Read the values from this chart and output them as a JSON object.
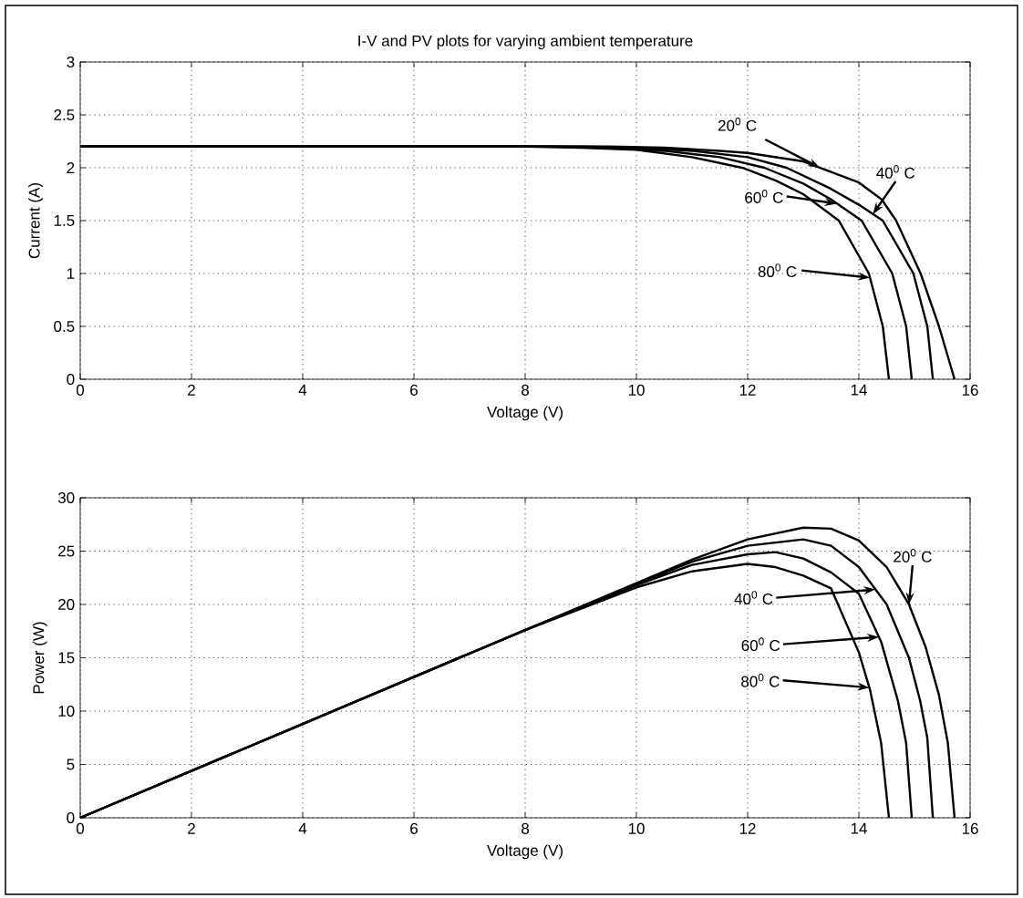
{
  "chart_data": [
    {
      "type": "line",
      "title": "I-V and PV plots for varying ambient temperature",
      "xlabel": "Voltage (V)",
      "ylabel": "Current (A)",
      "xlim": [
        0,
        16
      ],
      "ylim": [
        0,
        3
      ],
      "xticks": [
        0,
        2,
        4,
        6,
        8,
        10,
        12,
        14,
        16
      ],
      "yticks": [
        0,
        0.5,
        1,
        1.5,
        2,
        2.5,
        3
      ],
      "grid": true,
      "marker": "none",
      "line_style": "solid",
      "series": [
        {
          "color": "#000000",
          "x": [
            0,
            8,
            9,
            10,
            11,
            11.9,
            12.5,
            13,
            13.64,
            14.18,
            14.43,
            14.54
          ],
          "values": [
            2.2,
            2.2,
            2.19,
            2.17,
            2.1,
            2.0,
            1.88,
            1.75,
            1.5,
            1.0,
            0.5,
            0
          ]
        },
        {
          "color": "#000000",
          "x": [
            0,
            8.5,
            9.5,
            10.5,
            11.5,
            12.3,
            13,
            13.5,
            14.05,
            14.6,
            14.85,
            14.95
          ],
          "values": [
            2.2,
            2.2,
            2.19,
            2.16,
            2.1,
            2.0,
            1.85,
            1.7,
            1.5,
            1.0,
            0.5,
            0
          ]
        },
        {
          "color": "#000000",
          "x": [
            0,
            9,
            10,
            11,
            12,
            12.7,
            13.5,
            14,
            14.43,
            14.98,
            15.23,
            15.33
          ],
          "values": [
            2.2,
            2.2,
            2.19,
            2.16,
            2.1,
            2.0,
            1.8,
            1.65,
            1.5,
            1.0,
            0.5,
            0
          ]
        },
        {
          "color": "#000000",
          "x": [
            0,
            9.5,
            10.5,
            11.5,
            12,
            13,
            14,
            14.41,
            14.67,
            15.11,
            15.44,
            15.72
          ],
          "values": [
            2.2,
            2.2,
            2.19,
            2.16,
            2.14,
            2.06,
            1.86,
            1.7,
            1.5,
            1.0,
            0.5,
            0
          ]
        }
      ],
      "annotations": [
        {
          "text": "20$^{0}$ C",
          "x": 13.3,
          "y": 2.0
        },
        {
          "text": "40$^{0}$ C",
          "x": 14.25,
          "y": 1.56
        },
        {
          "text": "60$^{0}$ C",
          "x": 13.6,
          "y": 1.66
        },
        {
          "text": "80$^{0}$ C",
          "x": 14.2,
          "y": 0.96
        }
      ]
    },
    {
      "type": "line",
      "xlabel": "Voltage (V)",
      "ylabel": "Power (W)",
      "xlim": [
        0,
        16
      ],
      "ylim": [
        0,
        30
      ],
      "xticks": [
        0,
        2,
        4,
        6,
        8,
        10,
        12,
        14,
        16
      ],
      "yticks": [
        0,
        5,
        10,
        15,
        20,
        25,
        30
      ],
      "grid": true,
      "marker": "none",
      "line_style": "solid",
      "series": [
        {
          "color": "#000000",
          "x": [
            0,
            4,
            8,
            10,
            11,
            12,
            12.5,
            13,
            13.5,
            14,
            14.2,
            14.4,
            14.54
          ],
          "values": [
            0,
            8.8,
            17.6,
            21.6,
            23.1,
            23.8,
            23.5,
            22.7,
            21.5,
            15.5,
            12,
            7,
            0
          ]
        },
        {
          "color": "#000000",
          "x": [
            0,
            4,
            8,
            10,
            11,
            12,
            12.5,
            13,
            13.5,
            14,
            14.4,
            14.7,
            14.85,
            14.95
          ],
          "values": [
            0,
            8.8,
            17.6,
            21.8,
            23.7,
            24.7,
            24.9,
            24.3,
            23,
            21,
            16.5,
            11,
            7,
            0
          ]
        },
        {
          "color": "#000000",
          "x": [
            0,
            8,
            10,
            11,
            12,
            13,
            13.5,
            14,
            14.5,
            14.9,
            15.1,
            15.23,
            15.33
          ],
          "values": [
            0,
            17.6,
            21.9,
            24,
            25.5,
            26.1,
            25.5,
            23.5,
            20,
            15,
            11,
            7.5,
            0
          ]
        },
        {
          "color": "#000000",
          "x": [
            0,
            8,
            10,
            11,
            12,
            13,
            13.5,
            14,
            14.5,
            14.9,
            15.2,
            15.44,
            15.6,
            15.72
          ],
          "values": [
            0,
            17.6,
            22,
            24.2,
            26.1,
            27.2,
            27.1,
            26,
            23.5,
            20,
            16,
            11.5,
            7,
            0
          ]
        }
      ],
      "annotations": [
        {
          "text": "20$^{0}$ C",
          "x": 14.9,
          "y": 20
        },
        {
          "text": "40$^{0}$ C",
          "x": 14.3,
          "y": 21.4
        },
        {
          "text": "60$^{0}$ C",
          "x": 14.36,
          "y": 16.95
        },
        {
          "text": "80$^{0}$ C",
          "x": 14.19,
          "y": 12.2
        }
      ]
    }
  ]
}
